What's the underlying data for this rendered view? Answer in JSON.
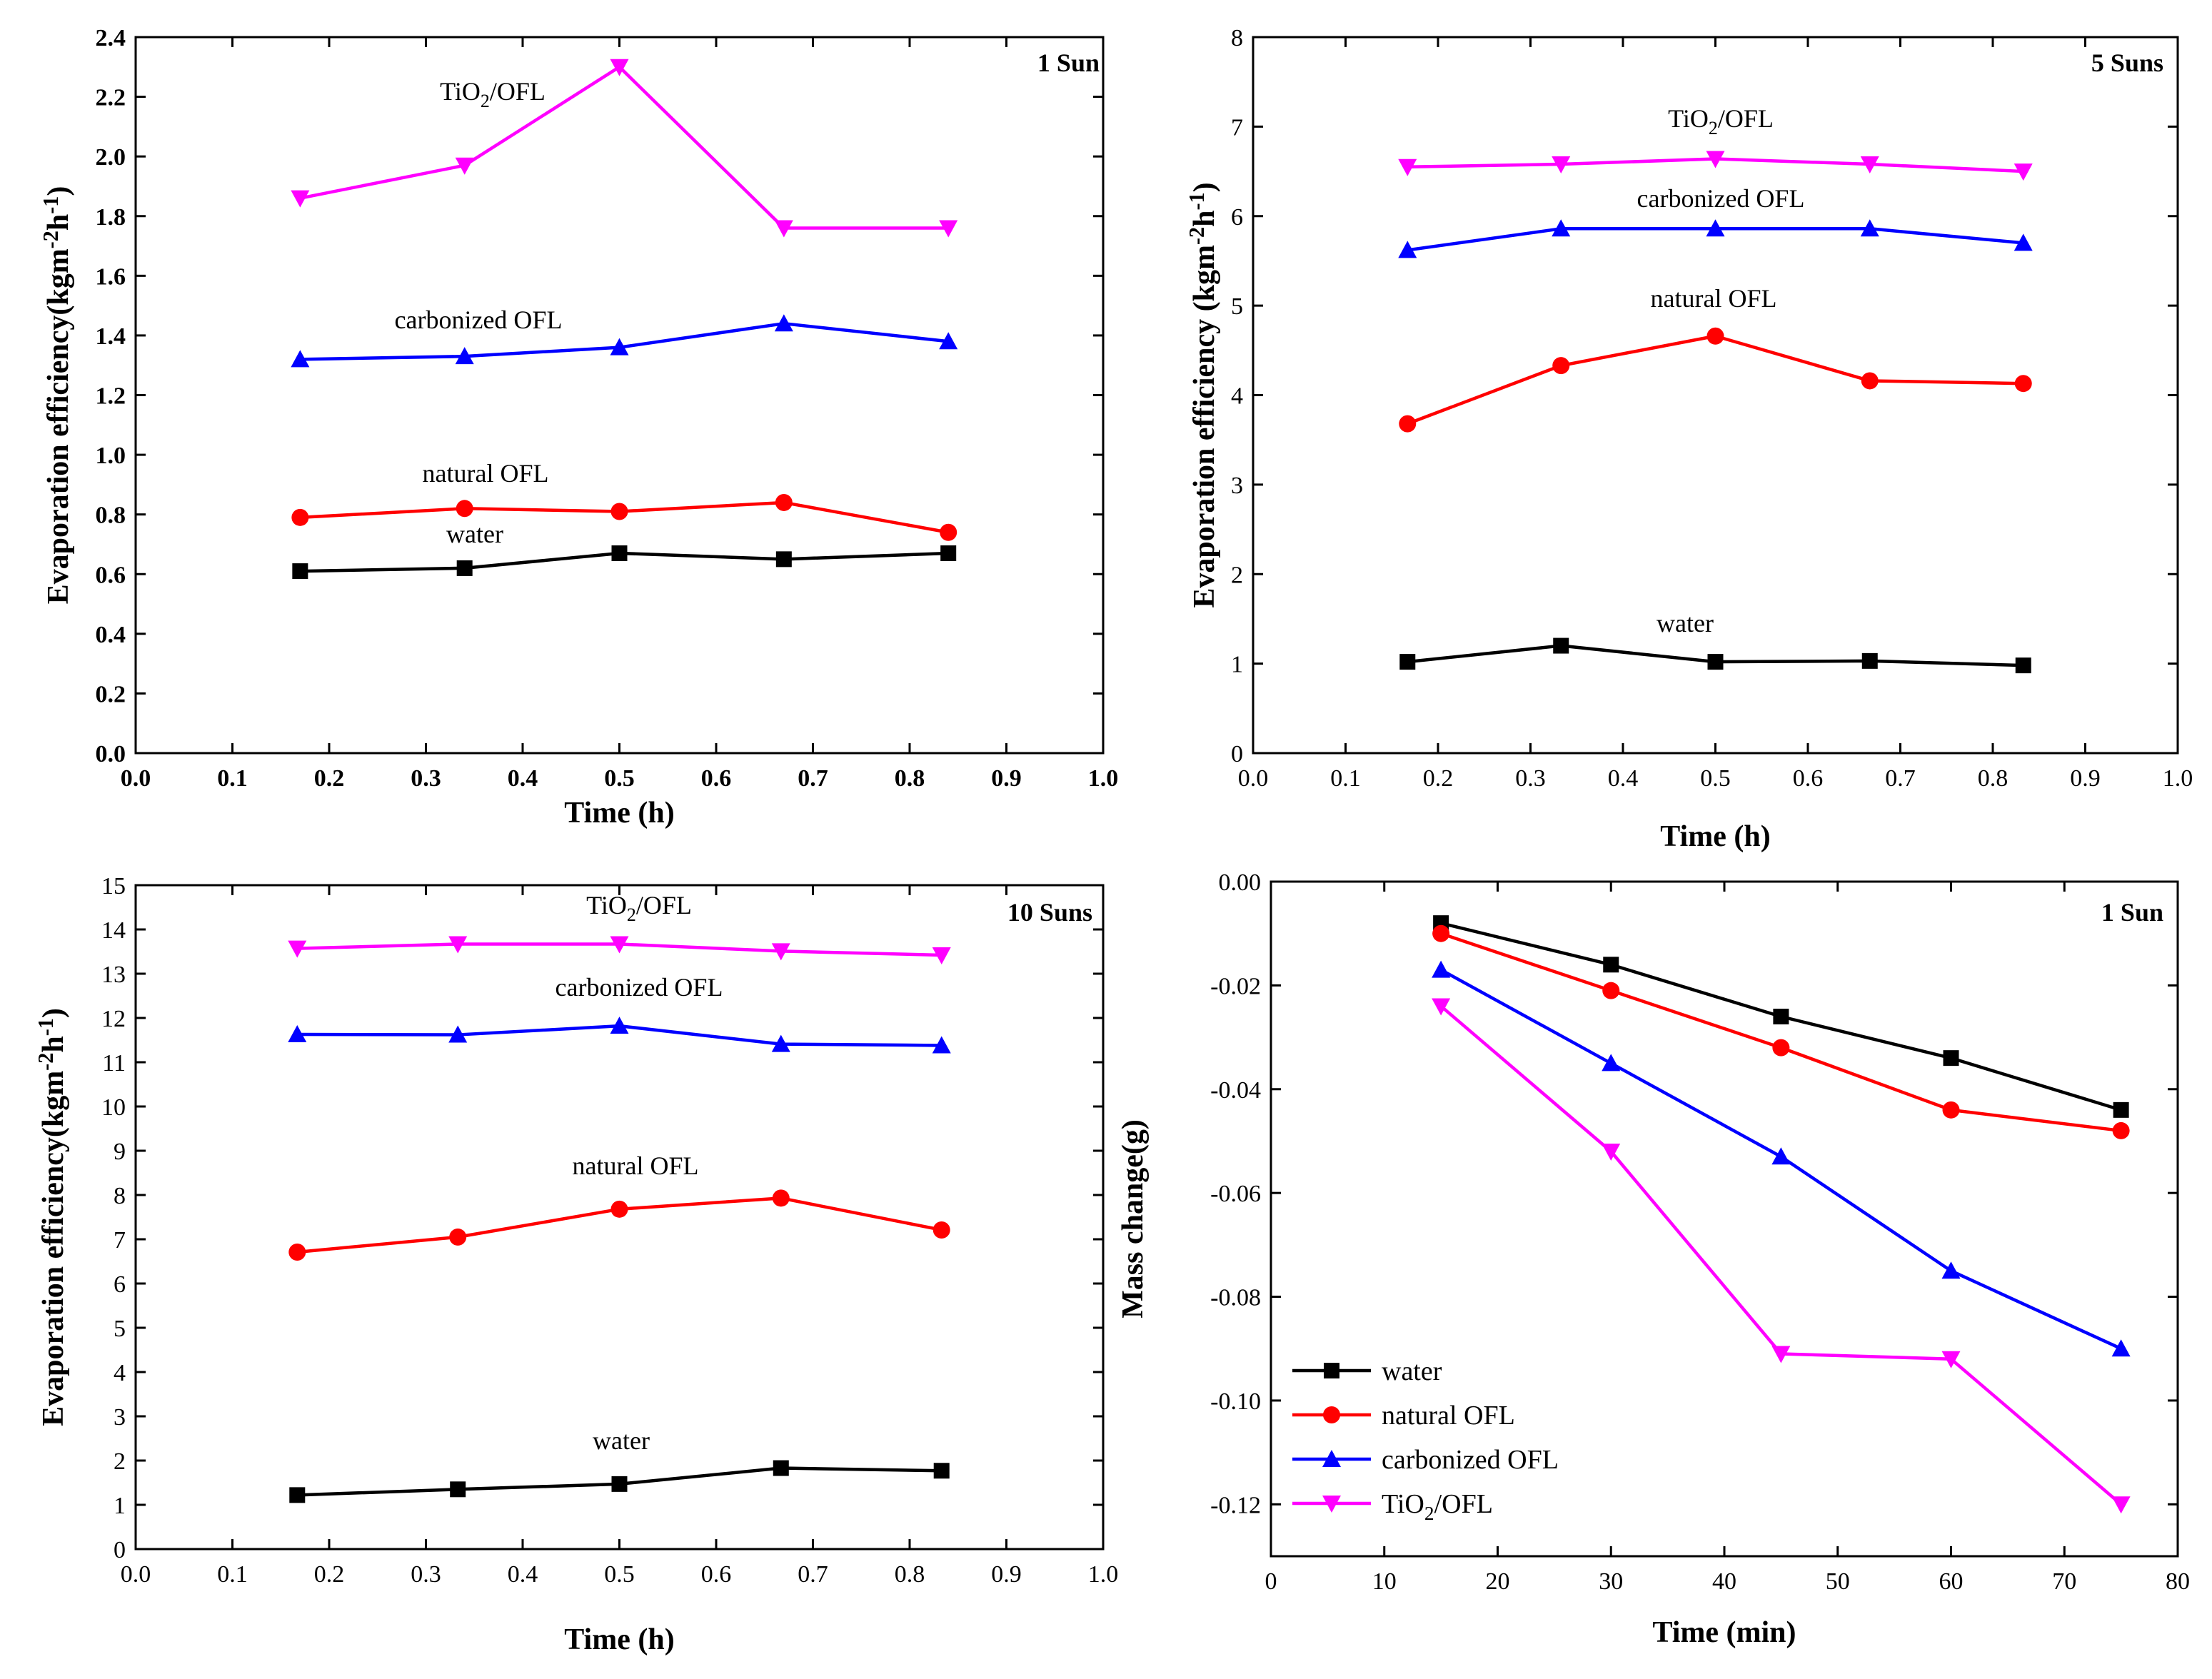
{
  "chart_data": [
    {
      "type": "line",
      "id": "a",
      "condition": "1 Sun",
      "xlabel": "Time (h)",
      "ylabel": "Evaporation efficiency(kgm-2h-1)",
      "xlim": [
        0,
        1.0
      ],
      "ylim": [
        0,
        2.4
      ],
      "xticks": [
        0,
        0.1,
        0.2,
        0.3,
        0.4,
        0.5,
        0.6,
        0.7,
        0.8,
        0.9,
        1.0
      ],
      "xtick_labels": [
        "0.0",
        "0.1",
        "0.2",
        "0.3",
        "0.4",
        "0.5",
        "0.6",
        "0.7",
        "0.8",
        "0.9",
        "1.0"
      ],
      "yticks": [
        0,
        0.2,
        0.4,
        0.6,
        0.8,
        1.0,
        1.2,
        1.4,
        1.6,
        1.8,
        2.0,
        2.2,
        2.4
      ],
      "ytick_labels": [
        "0.0",
        "0.2",
        "0.4",
        "0.6",
        "0.8",
        "1.0",
        "1.2",
        "1.4",
        "1.6",
        "1.8",
        "2.0",
        "2.2",
        "2.4"
      ],
      "series": [
        {
          "name": "water",
          "label": "water",
          "color": "#000000",
          "marker": "square",
          "x": [
            0.17,
            0.34,
            0.5,
            0.67,
            0.84
          ],
          "values": [
            0.61,
            0.62,
            0.67,
            0.65,
            0.67
          ]
        },
        {
          "name": "natural OFL",
          "label": "natural OFL",
          "color": "#ff0000",
          "marker": "circle",
          "x": [
            0.17,
            0.34,
            0.5,
            0.67,
            0.84
          ],
          "values": [
            0.79,
            0.82,
            0.81,
            0.84,
            0.74
          ]
        },
        {
          "name": "carbonized OFL",
          "label": "carbonized OFL",
          "color": "#0000ff",
          "marker": "triangle-up",
          "x": [
            0.17,
            0.34,
            0.5,
            0.67,
            0.84
          ],
          "values": [
            1.32,
            1.33,
            1.36,
            1.44,
            1.38
          ]
        },
        {
          "name": "TiO2/OFL",
          "label": "TiO2/OFL",
          "color": "#ff00ff",
          "marker": "triangle-down",
          "x": [
            0.17,
            0.34,
            0.5,
            0.67,
            0.84
          ],
          "values": [
            1.86,
            1.97,
            2.3,
            1.76,
            1.76
          ]
        }
      ]
    },
    {
      "type": "line",
      "id": "b",
      "condition": "5 Suns",
      "xlabel": "Time (h)",
      "ylabel": "Evaporation efficiency (kgm-2h-1)",
      "xlim": [
        0,
        1.0
      ],
      "ylim": [
        0,
        8
      ],
      "xticks": [
        0,
        0.1,
        0.2,
        0.3,
        0.4,
        0.5,
        0.6,
        0.7,
        0.8,
        0.9,
        1.0
      ],
      "xtick_labels": [
        "0.0",
        "0.1",
        "0.2",
        "0.3",
        "0.4",
        "0.5",
        "0.6",
        "0.7",
        "0.8",
        "0.9",
        "1.0"
      ],
      "yticks": [
        0,
        1,
        2,
        3,
        4,
        5,
        6,
        7,
        8
      ],
      "ytick_labels": [
        "0",
        "1",
        "2",
        "3",
        "4",
        "5",
        "6",
        "7",
        "8"
      ],
      "series": [
        {
          "name": "water",
          "label": "water",
          "color": "#000000",
          "marker": "square",
          "x": [
            0.167,
            0.333,
            0.5,
            0.667,
            0.833
          ],
          "values": [
            1.02,
            1.2,
            1.02,
            1.03,
            0.98
          ]
        },
        {
          "name": "natural OFL",
          "label": "natural OFL",
          "color": "#ff0000",
          "marker": "circle",
          "x": [
            0.167,
            0.333,
            0.5,
            0.667,
            0.833
          ],
          "values": [
            3.68,
            4.33,
            4.66,
            4.16,
            4.13
          ]
        },
        {
          "name": "carbonized OFL",
          "label": "carbonized OFL",
          "color": "#0000ff",
          "marker": "triangle-up",
          "x": [
            0.167,
            0.333,
            0.5,
            0.667,
            0.833
          ],
          "values": [
            5.62,
            5.86,
            5.86,
            5.86,
            5.7
          ]
        },
        {
          "name": "TiO2/OFL",
          "label": "TiO2/OFL",
          "color": "#ff00ff",
          "marker": "triangle-down",
          "x": [
            0.167,
            0.333,
            0.5,
            0.667,
            0.833
          ],
          "values": [
            6.55,
            6.58,
            6.64,
            6.58,
            6.5
          ]
        }
      ]
    },
    {
      "type": "line",
      "id": "c",
      "condition": "10 Suns",
      "xlabel": "Time (h)",
      "ylabel": "Evaporation efficiency(kgm-2h-1)",
      "xlim": [
        0,
        1.0
      ],
      "ylim": [
        0,
        15
      ],
      "xticks": [
        0,
        0.1,
        0.2,
        0.3,
        0.4,
        0.5,
        0.6,
        0.7,
        0.8,
        0.9,
        1.0
      ],
      "xtick_labels": [
        "0.0",
        "0.1",
        "0.2",
        "0.3",
        "0.4",
        "0.5",
        "0.6",
        "0.7",
        "0.8",
        "0.9",
        "1.0"
      ],
      "yticks": [
        0,
        1,
        2,
        3,
        4,
        5,
        6,
        7,
        8,
        9,
        10,
        11,
        12,
        13,
        14,
        15
      ],
      "ytick_labels": [
        "0",
        "1",
        "2",
        "3",
        "4",
        "5",
        "6",
        "7",
        "8",
        "9",
        "10",
        "11",
        "12",
        "13",
        "14",
        "15"
      ],
      "series": [
        {
          "name": "water",
          "label": "water",
          "color": "#000000",
          "marker": "square",
          "x": [
            0.167,
            0.333,
            0.5,
            0.667,
            0.833
          ],
          "values": [
            1.22,
            1.35,
            1.47,
            1.83,
            1.77
          ]
        },
        {
          "name": "natural OFL",
          "label": "natural OFL",
          "color": "#ff0000",
          "marker": "circle",
          "x": [
            0.167,
            0.333,
            0.5,
            0.667,
            0.833
          ],
          "values": [
            6.71,
            7.05,
            7.68,
            7.93,
            7.21
          ]
        },
        {
          "name": "carbonized OFL",
          "label": "carbonized OFL",
          "color": "#0000ff",
          "marker": "triangle-up",
          "x": [
            0.167,
            0.333,
            0.5,
            0.667,
            0.833
          ],
          "values": [
            11.63,
            11.62,
            11.82,
            11.41,
            11.38
          ]
        },
        {
          "name": "TiO2/OFL",
          "label": "TiO2/OFL",
          "color": "#ff00ff",
          "marker": "triangle-down",
          "x": [
            0.167,
            0.333,
            0.5,
            0.667,
            0.833
          ],
          "values": [
            13.57,
            13.67,
            13.67,
            13.51,
            13.42
          ]
        }
      ]
    },
    {
      "type": "line",
      "id": "d",
      "condition": "1 Sun",
      "xlabel": "Time (min)",
      "ylabel": "Mass change(g)",
      "xlim": [
        0,
        80
      ],
      "ylim": [
        -0.13,
        0.0
      ],
      "xticks": [
        0,
        10,
        20,
        30,
        40,
        50,
        60,
        70,
        80
      ],
      "xtick_labels": [
        "0",
        "10",
        "20",
        "30",
        "40",
        "50",
        "60",
        "70",
        "80"
      ],
      "yticks": [
        0.0,
        -0.02,
        -0.04,
        -0.06,
        -0.08,
        -0.1,
        -0.12
      ],
      "ytick_labels": [
        "0.00",
        "-0.02",
        "-0.04",
        "-0.06",
        "-0.08",
        "-0.10",
        "-0.12"
      ],
      "legend": {
        "position": "bottom-left",
        "entries": [
          "water",
          "natural OFL",
          "carbonized OFL",
          "TiO2/OFL"
        ]
      },
      "series": [
        {
          "name": "water",
          "label": "water",
          "color": "#000000",
          "marker": "square",
          "x": [
            15,
            30,
            45,
            60,
            75
          ],
          "values": [
            -0.008,
            -0.016,
            -0.026,
            -0.034,
            -0.044
          ]
        },
        {
          "name": "natural OFL",
          "label": "natural OFL",
          "color": "#ff0000",
          "marker": "circle",
          "x": [
            15,
            30,
            45,
            60,
            75
          ],
          "values": [
            -0.01,
            -0.021,
            -0.032,
            -0.044,
            -0.048
          ]
        },
        {
          "name": "carbonized OFL",
          "label": "carbonized OFL",
          "color": "#0000ff",
          "marker": "triangle-up",
          "x": [
            15,
            30,
            45,
            60,
            75
          ],
          "values": [
            -0.017,
            -0.035,
            -0.053,
            -0.075,
            -0.09
          ]
        },
        {
          "name": "TiO2/OFL",
          "label": "TiO2/OFL",
          "color": "#ff00ff",
          "marker": "triangle-down",
          "x": [
            15,
            30,
            45,
            60,
            75
          ],
          "values": [
            -0.024,
            -0.052,
            -0.091,
            -0.092,
            -0.12
          ]
        }
      ]
    }
  ]
}
